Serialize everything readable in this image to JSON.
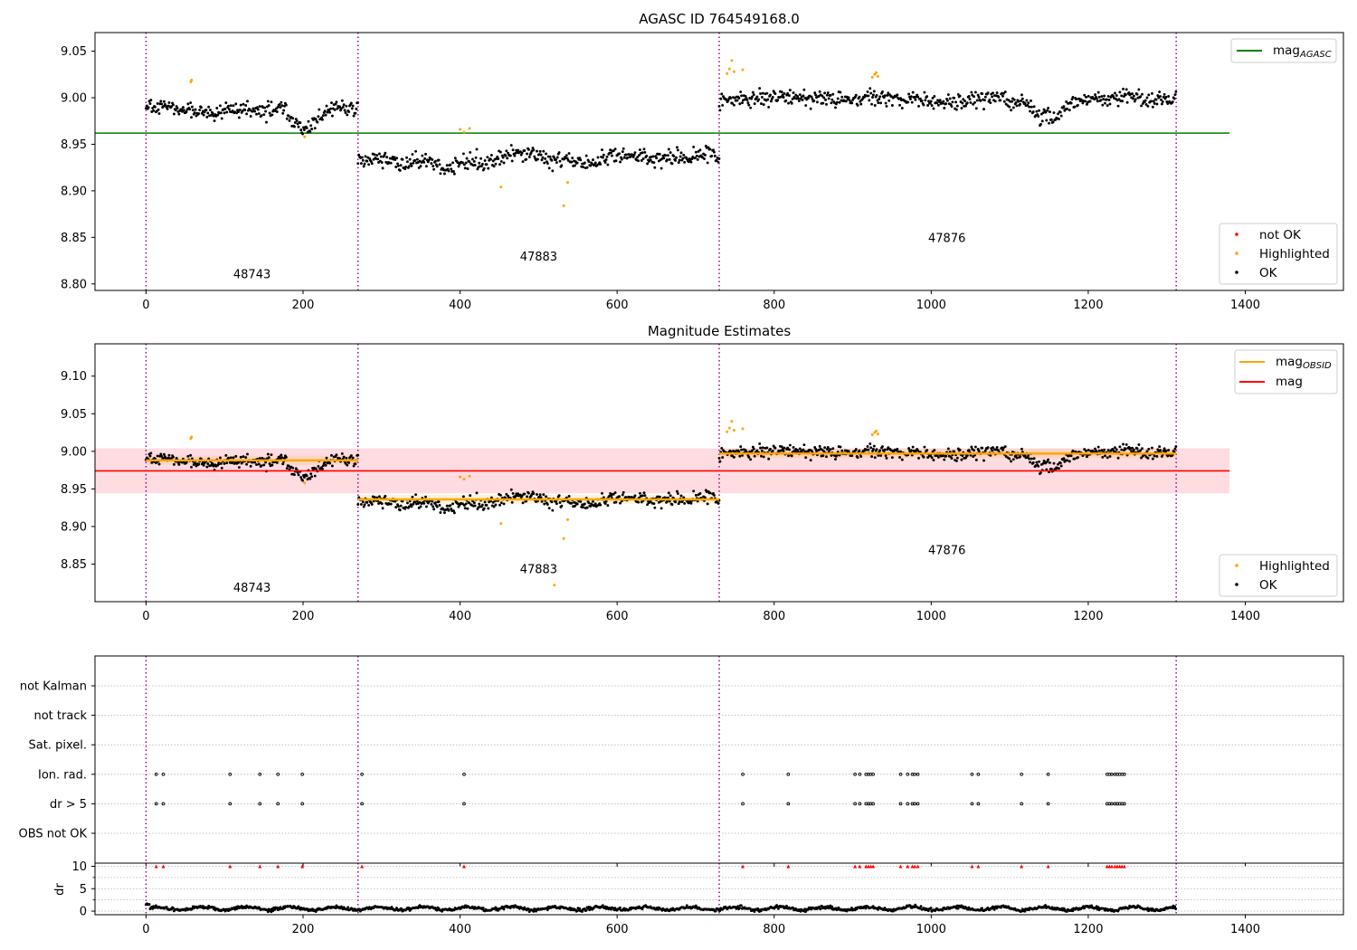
{
  "colors": {
    "ok": "#000000",
    "highlighted": "#ffa500",
    "not_ok": "#ff0000",
    "mag_agasc": "#008000",
    "mag": "#ff0000",
    "mag_obsid": "#ffa500",
    "band": "#ffc0cb",
    "boundary": "#800080",
    "grid": "#b0b0b0"
  },
  "chart_data": [
    {
      "type": "scatter",
      "title": "AGASC ID 764549168.0",
      "xlim": [
        -65,
        1525
      ],
      "ylim": [
        8.793,
        9.07
      ],
      "x_ticks": [
        0,
        200,
        400,
        600,
        800,
        1000,
        1200,
        1400
      ],
      "y_ticks": [
        8.8,
        8.85,
        8.9,
        8.95,
        9.0,
        9.05
      ],
      "y_tick_labels": [
        "8.80",
        "8.85",
        "8.90",
        "8.95",
        "9.00",
        "9.05"
      ],
      "boundaries": [
        0,
        270,
        730,
        1312
      ],
      "obsids": [
        {
          "label": "48743",
          "x": 135,
          "y": 8.806
        },
        {
          "label": "47883",
          "x": 500,
          "y": 8.825
        },
        {
          "label": "47876",
          "x": 1020,
          "y": 8.845
        }
      ],
      "hlines": [
        {
          "name": "mag_agasc",
          "y": 8.962,
          "x0": -65,
          "x1": 1380
        }
      ],
      "segments": [
        {
          "x0": 0,
          "x1": 270,
          "mean": 8.99,
          "std": 0.01,
          "dips": [
            {
              "at": 200,
              "width": 25,
              "depth": 0.02
            }
          ]
        },
        {
          "x0": 270,
          "x1": 730,
          "mean": 8.935,
          "std": 0.011,
          "dips": []
        },
        {
          "x0": 730,
          "x1": 1312,
          "mean": 8.997,
          "std": 0.01,
          "dips": [
            {
              "at": 1145,
              "width": 30,
              "depth": 0.015
            }
          ]
        }
      ],
      "highlighted": [
        {
          "x": 57,
          "y": 9.017
        },
        {
          "x": 58,
          "y": 9.019
        },
        {
          "x": 202,
          "y": 8.958
        },
        {
          "x": 400,
          "y": 8.966
        },
        {
          "x": 405,
          "y": 8.963
        },
        {
          "x": 412,
          "y": 8.967
        },
        {
          "x": 452,
          "y": 8.904
        },
        {
          "x": 532,
          "y": 8.884
        },
        {
          "x": 537,
          "y": 8.909
        },
        {
          "x": 740,
          "y": 9.026
        },
        {
          "x": 743,
          "y": 9.031
        },
        {
          "x": 746,
          "y": 9.04
        },
        {
          "x": 749,
          "y": 9.028
        },
        {
          "x": 760,
          "y": 9.03
        },
        {
          "x": 925,
          "y": 9.022
        },
        {
          "x": 928,
          "y": 9.025
        },
        {
          "x": 930,
          "y": 9.027
        },
        {
          "x": 932,
          "y": 9.023
        }
      ],
      "legend_upper": [
        {
          "label": "mag",
          "sub": "AGASC",
          "kind": "line",
          "color": "#008000"
        }
      ],
      "legend_lower": [
        {
          "label": "not OK",
          "kind": "dot",
          "color": "#ff0000"
        },
        {
          "label": "Highlighted",
          "kind": "dot",
          "color": "#ffa500"
        },
        {
          "label": "OK",
          "kind": "dot",
          "color": "#000000"
        }
      ]
    },
    {
      "type": "scatter",
      "title": "Magnitude Estimates",
      "xlim": [
        -65,
        1525
      ],
      "ylim": [
        8.8,
        9.143
      ],
      "x_ticks": [
        0,
        200,
        400,
        600,
        800,
        1000,
        1200,
        1400
      ],
      "y_ticks": [
        8.85,
        8.9,
        8.95,
        9.0,
        9.05,
        9.1
      ],
      "y_tick_labels": [
        "8.85",
        "8.90",
        "8.95",
        "9.00",
        "9.05",
        "9.10"
      ],
      "boundaries": [
        0,
        270,
        730,
        1312
      ],
      "obsids": [
        {
          "label": "48743",
          "x": 135,
          "y": 8.813
        },
        {
          "label": "47883",
          "x": 500,
          "y": 8.838
        },
        {
          "label": "47876",
          "x": 1020,
          "y": 8.863
        }
      ],
      "mag": 8.974,
      "mag_band": [
        8.944,
        9.004
      ],
      "obsid_mags": [
        {
          "x0": 0,
          "x1": 270,
          "y": 8.988,
          "err": 0.006
        },
        {
          "x0": 270,
          "x1": 730,
          "y": 8.936,
          "err": 0.006
        },
        {
          "x0": 730,
          "x1": 1312,
          "y": 8.997,
          "err": 0.006
        }
      ],
      "band_x": [
        -65,
        1380
      ],
      "legend_upper": [
        {
          "label": "mag",
          "sub": "OBSID",
          "kind": "line",
          "color": "#ffa500"
        },
        {
          "label": "mag",
          "sub": "",
          "kind": "line",
          "color": "#ff0000"
        }
      ],
      "legend_lower": [
        {
          "label": "Highlighted",
          "kind": "dot",
          "color": "#ffa500"
        },
        {
          "label": "OK",
          "kind": "dot",
          "color": "#000000"
        }
      ],
      "extra_highlighted": [
        {
          "x": 520,
          "y": 8.822
        }
      ]
    },
    {
      "type": "scatter",
      "title": "",
      "xlim": [
        -65,
        1525
      ],
      "categories": [
        "not Kalman",
        "not track",
        "Sat. pixel.",
        "Ion. rad.",
        "dr > 5",
        "OBS not OK"
      ],
      "boundaries": [
        0,
        270,
        730,
        1312
      ],
      "flag_x": [
        13,
        22,
        107,
        145,
        168,
        199,
        275,
        405,
        760,
        818,
        903,
        909,
        917,
        920,
        923,
        926,
        961,
        970,
        976,
        979,
        983,
        1052,
        1060,
        1115,
        1149,
        1224,
        1227,
        1230,
        1234,
        1237,
        1240,
        1243,
        1246
      ]
    },
    {
      "type": "scatter",
      "title": "",
      "ylabel": "dr",
      "xlim": [
        -65,
        1525
      ],
      "ylim": [
        -0.8,
        10.7
      ],
      "x_ticks": [
        0,
        200,
        400,
        600,
        800,
        1000,
        1200,
        1400
      ],
      "x_tick_labels": [
        "0",
        "200",
        "400",
        "600",
        "800",
        "1000",
        "1200",
        "1400"
      ],
      "y_ticks": [
        0,
        5,
        10
      ],
      "y_tick_labels": [
        "0",
        "5",
        "10"
      ],
      "dr_mean": 0.6,
      "boundaries": [
        0,
        270,
        730,
        1312
      ]
    }
  ]
}
